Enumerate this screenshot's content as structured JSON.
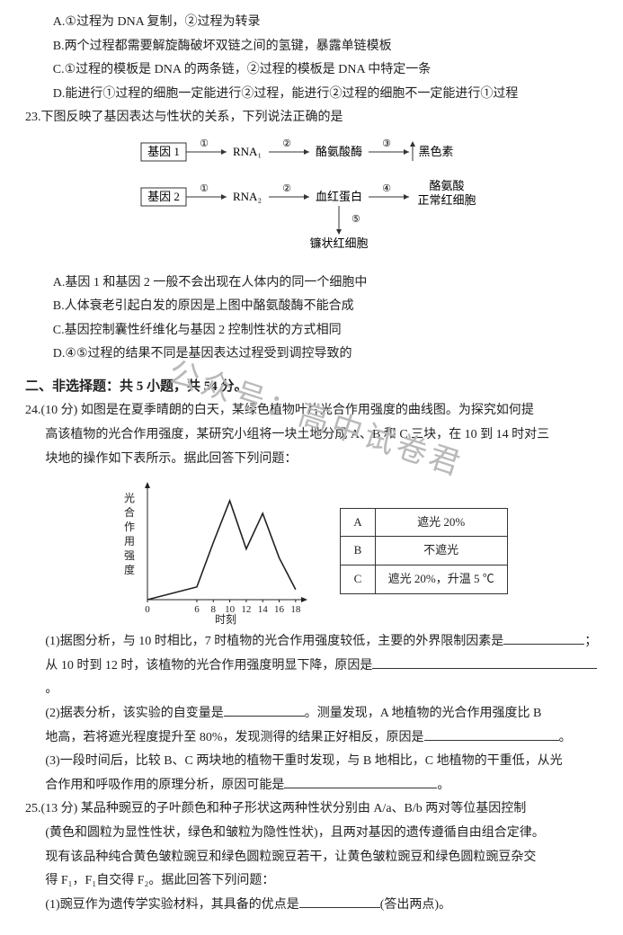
{
  "q22": {
    "optA": "A.①过程为 DNA 复制，②过程为转录",
    "optB": "B.两个过程都需要解旋酶破坏双链之间的氢键，暴露单链模板",
    "optC": "C.①过程的模板是 DNA 的两条链，②过程的模板是 DNA 中特定一条",
    "optD": "D.能进行①过程的细胞一定能进行②过程，能进行②过程的细胞不一定能进行①过程"
  },
  "q23": {
    "stem": "23.下图反映了基因表达与性状的关系，下列说法正确的是",
    "diagram": {
      "gene1": "基因 1",
      "gene2": "基因 2",
      "rna1": "RNA₁",
      "rna2": "RNA₂",
      "mid1": "酪氨酸酶",
      "mid2": "血红蛋白",
      "end1": "黑色素",
      "end2a": "酪氨酸",
      "end2b": "正常红细胞",
      "branch": "镰状红细胞",
      "circ": [
        "①",
        "②",
        "③",
        "④",
        "⑤"
      ]
    },
    "optA": "A.基因 1 和基因 2 一般不会出现在人体内的同一个细胞中",
    "optB": "B.人体衰老引起白发的原因是上图中酪氨酸酶不能合成",
    "optC": "C.基因控制囊性纤维化与基因 2 控制性状的方式相同",
    "optD": "D.④⑤过程的结果不同是基因表达过程受到调控导致的"
  },
  "section2": "二、非选择题：共 5 小题，共 54 分。",
  "q24": {
    "stem1": "24.(10 分) 如图是在夏季晴朗的白天，某绿色植物叶片光合作用强度的曲线图。为探究如何提",
    "stem2": "高该植物的光合作用强度，某研究小组将一块土地分成 A、B 和 C 三块，在 10 到 14 时对三",
    "stem3": "块地的操作如下表所示。据此回答下列问题：",
    "chart": {
      "ylab": "光合作用强度",
      "xlab": "时刻",
      "xticks": [
        "0",
        "6",
        "8",
        "10",
        "12",
        "14",
        "16",
        "18"
      ],
      "points": [
        [
          0,
          0
        ],
        [
          6,
          10
        ],
        [
          8,
          45
        ],
        [
          10,
          78
        ],
        [
          12,
          40
        ],
        [
          14,
          68
        ],
        [
          16,
          33
        ],
        [
          18,
          8
        ]
      ],
      "line_color": "#222222",
      "axis_color": "#222222",
      "xlim": [
        0,
        19
      ],
      "ylim": [
        0,
        90
      ]
    },
    "table": {
      "rows": [
        [
          "A",
          "遮光 20%"
        ],
        [
          "B",
          "不遮光"
        ],
        [
          "C",
          "遮光 20%，升温 5 ℃"
        ]
      ]
    },
    "p1a": "(1)据图分析，与 10 时相比，7 时植物的光合作用强度较低，主要的外界限制因素是",
    "p1b": "从 10 时到 12 时，该植物的光合作用强度明显下降，原因是",
    "p2a": "(2)据表分析，该实验的自变量是",
    "p2b": "。测量发现，A 地植物的光合作用强度比 B",
    "p2c": "地高，若将遮光程度提升至 80%，发现测得的结果正好相反，原因是",
    "p3a": "(3)一段时间后，比较 B、C 两块地的植物干重时发现，与 B 地相比，C 地植物的干重低，从光",
    "p3b": "合作用和呼吸作用的原理分析，原因可能是"
  },
  "q25": {
    "stem1": "25.(13 分) 某品种豌豆的子叶颜色和种子形状这两种性状分别由 A/a、B/b 两对等位基因控制",
    "stem2": "(黄色和圆粒为显性性状，绿色和皱粒为隐性性状)，且两对基因的遗传遵循自由组合定律。",
    "stem3": "现有该品种纯合黄色皱粒豌豆和绿色圆粒豌豆若干，让黄色皱粒豌豆和绿色圆粒豌豆杂交",
    "stem4": "得 F₁，F₁自交得 F₂。据此回答下列问题：",
    "p1a": "(1)豌豆作为遗传学实验材料，其具备的优点是",
    "p1b": "(答出两点)。"
  },
  "watermark": "公众号：高中试卷君",
  "style": {
    "font_main": "SimSun",
    "fontsize_body": 14,
    "fontsize_section": 15,
    "color_text": "#222222",
    "color_watermark": "#b9b9b9",
    "table_border": "#333333"
  }
}
